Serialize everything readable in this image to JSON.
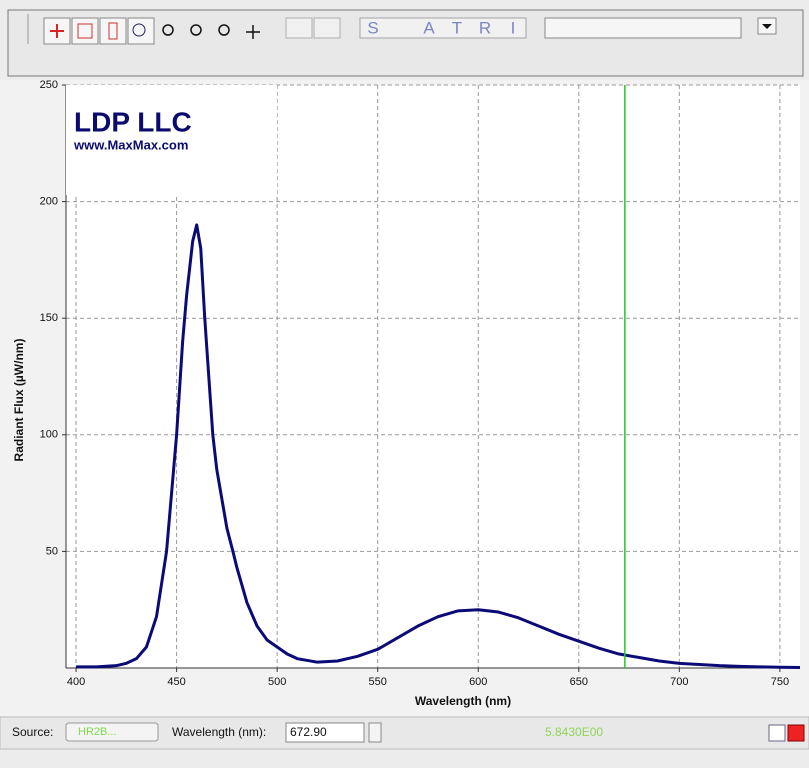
{
  "toolbar": {
    "letters": [
      "S",
      "A",
      "T",
      "R",
      "I"
    ]
  },
  "chart_data": {
    "type": "line",
    "logo_title": "LDP LLC",
    "logo_url": "www.MaxMax.com",
    "xlabel": "Wavelength (nm)",
    "ylabel": "Radiant Flux (µW/nm)",
    "x": [
      400,
      410,
      420,
      425,
      430,
      435,
      440,
      445,
      450,
      453,
      455,
      458,
      460,
      462,
      464,
      466,
      468,
      470,
      475,
      478,
      480,
      485,
      490,
      495,
      500,
      505,
      510,
      520,
      530,
      540,
      550,
      560,
      570,
      580,
      590,
      600,
      610,
      620,
      630,
      640,
      650,
      660,
      670,
      680,
      690,
      700,
      710,
      720,
      730,
      740,
      750,
      760
    ],
    "series": [
      {
        "color": "#0b0b78",
        "values": [
          0.5,
          0.5,
          1,
          2,
          4,
          9,
          22,
          50,
          100,
          140,
          160,
          183,
          190,
          180,
          150,
          125,
          100,
          85,
          60,
          50,
          43,
          28,
          18,
          12,
          9,
          6,
          4,
          2.5,
          3,
          5,
          8,
          13,
          18,
          22,
          24.5,
          25,
          24,
          21.5,
          18,
          14.5,
          11.5,
          8.5,
          6,
          4.5,
          3,
          2,
          1.5,
          1,
          0.7,
          0.5,
          0.3,
          0.2
        ]
      }
    ],
    "xlim": [
      395,
      760
    ],
    "ylim": [
      0,
      250
    ],
    "xticks": [
      400,
      450,
      500,
      550,
      600,
      650,
      700,
      750
    ],
    "yticks": [
      50,
      100,
      150,
      200,
      250
    ],
    "grid": true,
    "cursor_x": 672.9,
    "cursor_color": "#22cc22"
  },
  "status": {
    "source_label": "Source:",
    "source_value": "HR2B...",
    "wavelength_label": "Wavelength (nm):",
    "wavelength_value": "672.90",
    "reading": "5.8430E00"
  }
}
